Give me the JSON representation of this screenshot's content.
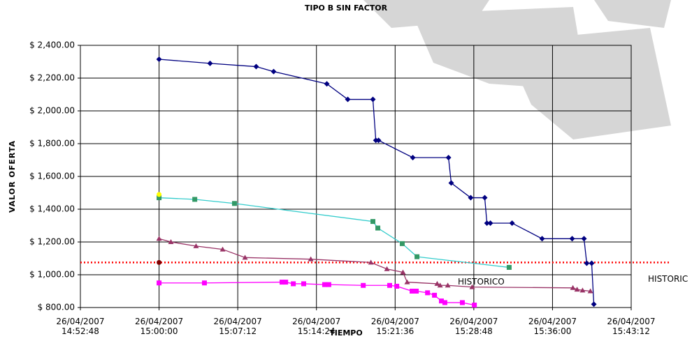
{
  "chart_data": {
    "type": "line",
    "title": "TIPO B SIN FACTOR",
    "x_label": "TIEMPO",
    "y_label": "VALOR OFERTA",
    "xlim": [
      "2007-04-26 14:52:48",
      "2007-04-26 15:43:12"
    ],
    "xticks": [
      {
        "value": "2007-04-26 14:52:48",
        "label": "26/04/2007 14:52:48"
      },
      {
        "value": "2007-04-26 15:00:00",
        "label": "26/04/2007 15:00:00"
      },
      {
        "value": "2007-04-26 15:07:12",
        "label": "26/04/2007 15:07:12"
      },
      {
        "value": "2007-04-26 15:14:24",
        "label": "26/04/2007 15:14:24"
      },
      {
        "value": "2007-04-26 15:21:36",
        "label": "26/04/2007 15:21:36"
      },
      {
        "value": "2007-04-26 15:28:48",
        "label": "26/04/2007 15:28:48"
      },
      {
        "value": "2007-04-26 15:36:00",
        "label": "26/04/2007 15:36:00"
      },
      {
        "value": "2007-04-26 15:43:12",
        "label": "26/04/2007 15:43:12"
      }
    ],
    "ylim": [
      800,
      2400
    ],
    "yticks": [
      {
        "value": 800,
        "label": "$ 800.00"
      },
      {
        "value": 1000,
        "label": "$ 1,000.00"
      },
      {
        "value": 1200,
        "label": "$ 1,200.00"
      },
      {
        "value": 1400,
        "label": "$ 1,400.00"
      },
      {
        "value": 1600,
        "label": "$ 1,600.00"
      },
      {
        "value": 1800,
        "label": "$ 1,800.00"
      },
      {
        "value": 2000,
        "label": "$ 2,000.00"
      },
      {
        "value": 2200,
        "label": "$ 2,200.00"
      },
      {
        "value": 2400,
        "label": "$ 2,400.00"
      }
    ],
    "grid": true,
    "reference_line": {
      "value": 1075,
      "label": "HISTORICO",
      "color": "#ff0000"
    },
    "annotations": [
      "HISTORIC"
    ],
    "series": [
      {
        "color": "#000080",
        "marker": "diamond",
        "marker_color": "#000080",
        "x": [
          "2007-04-26 15:00:00",
          "2007-04-26 15:04:40",
          "2007-04-26 15:08:53",
          "2007-04-26 15:10:29",
          "2007-04-26 15:15:21",
          "2007-04-26 15:17:16",
          "2007-04-26 15:19:34",
          "2007-04-26 15:19:50",
          "2007-04-26 15:20:05",
          "2007-04-26 15:23:13",
          "2007-04-26 15:26:29",
          "2007-04-26 15:26:44",
          "2007-04-26 15:28:31",
          "2007-04-26 15:29:48",
          "2007-04-26 15:30:00",
          "2007-04-26 15:30:19",
          "2007-04-26 15:32:18",
          "2007-04-26 15:35:03",
          "2007-04-26 15:37:48",
          "2007-04-26 15:38:53",
          "2007-04-26 15:39:08",
          "2007-04-26 15:39:35",
          "2007-04-26 15:39:47"
        ],
        "values": [
          2315,
          2290,
          2270,
          2240,
          2165,
          2070,
          2070,
          1820,
          1820,
          1715,
          1715,
          1560,
          1470,
          1470,
          1315,
          1315,
          1315,
          1220,
          1220,
          1220,
          1070,
          1070,
          820
        ]
      },
      {
        "color": "#33cccc",
        "marker": "square",
        "marker_color": "#339966",
        "x": [
          "2007-04-26 15:00:00",
          "2007-04-26 15:03:16",
          "2007-04-26 15:06:54",
          "2007-04-26 15:19:34",
          "2007-04-26 15:20:01",
          "2007-04-26 15:22:15",
          "2007-04-26 15:23:36",
          "2007-04-26 15:32:02"
        ],
        "values": [
          1470,
          1460,
          1435,
          1325,
          1285,
          1190,
          1110,
          1045
        ]
      },
      {
        "color": "#993366",
        "marker": "triangle",
        "marker_color": "#993366",
        "x": [
          "2007-04-26 15:00:00",
          "2007-04-26 15:01:05",
          "2007-04-26 15:03:23",
          "2007-04-26 15:05:49",
          "2007-04-26 15:07:52",
          "2007-04-26 15:13:53",
          "2007-04-26 15:19:23",
          "2007-04-26 15:20:51",
          "2007-04-26 15:22:19",
          "2007-04-26 15:22:42",
          "2007-04-26 15:25:27",
          "2007-04-26 15:25:43",
          "2007-04-26 15:26:25",
          "2007-04-26 15:28:39",
          "2007-04-26 15:37:52",
          "2007-04-26 15:38:15",
          "2007-04-26 15:38:45",
          "2007-04-26 15:39:28"
        ],
        "values": [
          1220,
          1200,
          1175,
          1155,
          1105,
          1095,
          1075,
          1035,
          1015,
          955,
          945,
          935,
          935,
          925,
          920,
          910,
          905,
          900
        ]
      },
      {
        "color": "#ff00ff",
        "marker": "square",
        "marker_color": "#ff00ff",
        "x": [
          "2007-04-26 15:00:00",
          "2007-04-26 15:04:09",
          "2007-04-26 15:11:15",
          "2007-04-26 15:11:35",
          "2007-04-26 15:12:17",
          "2007-04-26 15:13:14",
          "2007-04-26 15:15:09",
          "2007-04-26 15:15:32",
          "2007-04-26 15:18:41",
          "2007-04-26 15:21:06",
          "2007-04-26 15:21:45",
          "2007-04-26 15:23:09",
          "2007-04-26 15:23:32",
          "2007-04-26 15:24:34",
          "2007-04-26 15:25:12",
          "2007-04-26 15:25:50",
          "2007-04-26 15:26:09",
          "2007-04-26 15:27:45",
          "2007-04-26 15:28:51"
        ],
        "values": [
          950,
          950,
          955,
          955,
          945,
          945,
          940,
          940,
          935,
          935,
          930,
          900,
          900,
          890,
          875,
          840,
          830,
          830,
          815
        ]
      },
      {
        "color": "#ffff00",
        "marker": "circle",
        "marker_color": "#ffff00",
        "x": [
          "2007-04-26 15:00:00"
        ],
        "values": [
          1490
        ]
      },
      {
        "color": "#800000",
        "marker": "circle",
        "marker_color": "#800000",
        "x": [
          "2007-04-26 15:00:00"
        ],
        "values": [
          1075
        ]
      }
    ]
  }
}
